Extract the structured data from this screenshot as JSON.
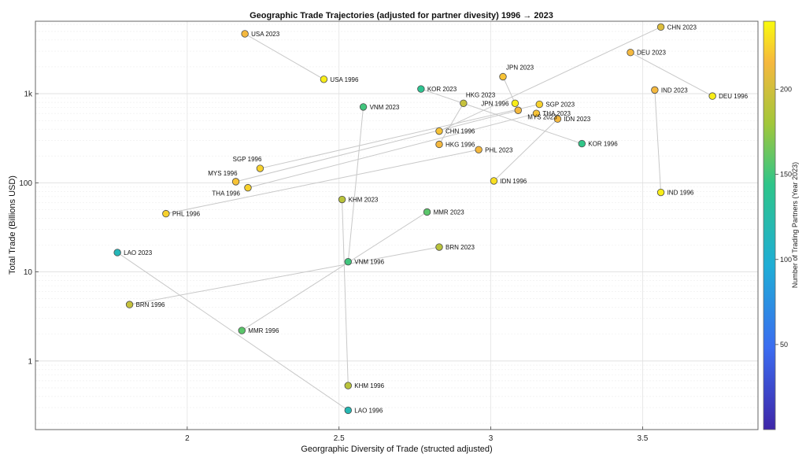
{
  "chart_data": {
    "type": "scatter",
    "title": "Geographic Trade Trajectories (adjusted for partner divesity) 1996 → 2023",
    "xlabel": "Georgraphic Diversity of Trade (structed adjusted)",
    "ylabel": "Total Trade (Billions USD)",
    "xlim": [
      1.5,
      3.88
    ],
    "ylim": [
      0.17,
      6500
    ],
    "yscale": "log",
    "xticks": [
      2,
      2.5,
      3,
      3.5
    ],
    "xtick_labels": [
      "2",
      "2.5",
      "3",
      "3.5"
    ],
    "yticks": [
      1,
      10,
      100,
      1000
    ],
    "ytick_labels": [
      "1",
      "10",
      "100",
      "1k"
    ],
    "colorbar": {
      "label": "Number of Trading Partners (Year 2023)",
      "min": 0,
      "max": 240,
      "ticks": [
        50,
        100,
        150,
        200
      ],
      "tick_labels": [
        "50",
        "100",
        "150",
        "200"
      ]
    },
    "points": [
      {
        "label": "CHN 2023",
        "x": 3.56,
        "y": 5600,
        "partners": 205
      },
      {
        "label": "CHN 1996",
        "x": 2.83,
        "y": 380,
        "partners": 220
      },
      {
        "label": "DEU 2023",
        "x": 3.46,
        "y": 2900,
        "partners": 215
      },
      {
        "label": "DEU 1996",
        "x": 3.73,
        "y": 940,
        "partners": 235
      },
      {
        "label": "USA 2023",
        "x": 2.19,
        "y": 4700,
        "partners": 215
      },
      {
        "label": "USA 1996",
        "x": 2.45,
        "y": 1450,
        "partners": 235
      },
      {
        "label": "JPN 2023",
        "x": 3.04,
        "y": 1550,
        "partners": 220
      },
      {
        "label": "JPN 1996",
        "x": 3.08,
        "y": 780,
        "partners": 235
      },
      {
        "label": "KOR 2023",
        "x": 2.77,
        "y": 1130,
        "partners": 140
      },
      {
        "label": "KOR 1996",
        "x": 3.3,
        "y": 275,
        "partners": 145
      },
      {
        "label": "HKG 2023",
        "x": 2.91,
        "y": 780,
        "partners": 195
      },
      {
        "label": "HKG 1996",
        "x": 2.83,
        "y": 270,
        "partners": 215
      },
      {
        "label": "IND 2023",
        "x": 3.54,
        "y": 1100,
        "partners": 215
      },
      {
        "label": "IND 1996",
        "x": 3.56,
        "y": 78,
        "partners": 235
      },
      {
        "label": "SGP 2023",
        "x": 3.16,
        "y": 760,
        "partners": 225
      },
      {
        "label": "SGP 1996",
        "x": 2.24,
        "y": 145,
        "partners": 225
      },
      {
        "label": "THA 2023",
        "x": 3.15,
        "y": 600,
        "partners": 220
      },
      {
        "label": "THA 1996",
        "x": 2.2,
        "y": 88,
        "partners": 225
      },
      {
        "label": "MYS 2023",
        "x": 3.09,
        "y": 650,
        "partners": 215
      },
      {
        "label": "MYS 1996",
        "x": 2.16,
        "y": 103,
        "partners": 220
      },
      {
        "label": "IDN 2023",
        "x": 3.22,
        "y": 520,
        "partners": 215
      },
      {
        "label": "IDN 1996",
        "x": 3.01,
        "y": 105,
        "partners": 230
      },
      {
        "label": "PHL 2023",
        "x": 2.96,
        "y": 235,
        "partners": 215
      },
      {
        "label": "PHL 1996",
        "x": 1.93,
        "y": 45,
        "partners": 225
      },
      {
        "label": "VNM 2023",
        "x": 2.58,
        "y": 710,
        "partners": 150
      },
      {
        "label": "VNM 1996",
        "x": 2.53,
        "y": 13,
        "partners": 150
      },
      {
        "label": "KHM 2023",
        "x": 2.51,
        "y": 65,
        "partners": 190
      },
      {
        "label": "KHM 1996",
        "x": 2.53,
        "y": 0.53,
        "partners": 190
      },
      {
        "label": "MMR 2023",
        "x": 2.79,
        "y": 47,
        "partners": 158
      },
      {
        "label": "MMR 1996",
        "x": 2.18,
        "y": 2.2,
        "partners": 158
      },
      {
        "label": "BRN 2023",
        "x": 2.83,
        "y": 19,
        "partners": 190
      },
      {
        "label": "BRN 1996",
        "x": 1.81,
        "y": 4.3,
        "partners": 195
      },
      {
        "label": "LAO 2023",
        "x": 1.77,
        "y": 16.5,
        "partners": 115
      },
      {
        "label": "LAO 1996",
        "x": 2.53,
        "y": 0.28,
        "partners": 118
      }
    ],
    "trajectories": [
      [
        "CHN 1996",
        "CHN 2023"
      ],
      [
        "DEU 1996",
        "DEU 2023"
      ],
      [
        "USA 1996",
        "USA 2023"
      ],
      [
        "JPN 1996",
        "JPN 2023"
      ],
      [
        "KOR 1996",
        "KOR 2023"
      ],
      [
        "HKG 1996",
        "HKG 2023"
      ],
      [
        "IND 1996",
        "IND 2023"
      ],
      [
        "SGP 1996",
        "SGP 2023"
      ],
      [
        "THA 1996",
        "THA 2023"
      ],
      [
        "MYS 1996",
        "MYS 2023"
      ],
      [
        "IDN 1996",
        "IDN 2023"
      ],
      [
        "PHL 1996",
        "PHL 2023"
      ],
      [
        "VNM 1996",
        "VNM 2023"
      ],
      [
        "KHM 1996",
        "KHM 2023"
      ],
      [
        "MMR 1996",
        "MMR 2023"
      ],
      [
        "BRN 1996",
        "BRN 2023"
      ],
      [
        "LAO 1996",
        "LAO 2023"
      ]
    ]
  }
}
